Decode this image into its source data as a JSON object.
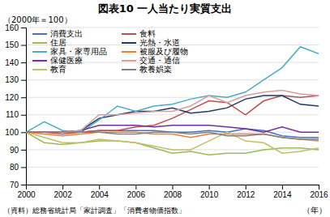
{
  "chart_data": {
    "type": "line",
    "title": "図表10  一人当たり実質支出",
    "ylabel": "（2000年＝100）",
    "xlabel": "（年）",
    "annotations": [
      "（資料）総務省統計局「家計調査」「消費者物価指数」"
    ],
    "x": [
      2000,
      2001,
      2002,
      2003,
      2004,
      2005,
      2006,
      2007,
      2008,
      2009,
      2010,
      2011,
      2012,
      2013,
      2014,
      2015,
      2016
    ],
    "xlim": [
      2000,
      2016
    ],
    "xticks": [
      2000,
      2002,
      2004,
      2006,
      2008,
      2010,
      2012,
      2014,
      2016
    ],
    "ylim": [
      70,
      160
    ],
    "yticks": [
      70,
      80,
      90,
      100,
      110,
      120,
      130,
      140,
      150,
      160
    ],
    "grid": "y",
    "legend": "upper left",
    "series": [
      {
        "name": "消費支出",
        "color": "#4472C4",
        "values": [
          100,
          100,
          100,
          100,
          101,
          101,
          101,
          101,
          100,
          100,
          101,
          100,
          102,
          101,
          98,
          97,
          97
        ]
      },
      {
        "name": "食料",
        "color": "#C0504D",
        "values": [
          100,
          100,
          99,
          100,
          101,
          101,
          103,
          104,
          108,
          113,
          118,
          117,
          110,
          118,
          121,
          120,
          121
        ]
      },
      {
        "name": "住居",
        "color": "#9BBB59",
        "values": [
          100,
          94,
          93,
          94,
          95,
          95,
          94,
          91,
          88,
          89,
          87,
          88,
          88,
          90,
          91,
          91,
          90
        ]
      },
      {
        "name": "光熱・水道",
        "color": "#1F3864",
        "values": [
          100,
          100,
          100,
          101,
          108,
          110,
          112,
          112,
          114,
          111,
          112,
          114,
          119,
          121,
          121,
          116,
          115
        ]
      },
      {
        "name": "家具・家専用品",
        "color": "#4BACC6",
        "values": [
          100,
          106,
          101,
          100,
          107,
          115,
          112,
          115,
          116,
          119,
          121,
          120,
          123,
          130,
          137,
          149,
          145
        ]
      },
      {
        "name": "被服及び履物",
        "color": "#ED7D31",
        "values": [
          100,
          99,
          98,
          99,
          100,
          100,
          100,
          99,
          99,
          97,
          99,
          99,
          99,
          99,
          97,
          96,
          95
        ]
      },
      {
        "name": "保健医療",
        "color": "#7030A0",
        "values": [
          100,
          100,
          100,
          101,
          104,
          104,
          104,
          103,
          104,
          104,
          104,
          103,
          102,
          100,
          103,
          100,
          100
        ]
      },
      {
        "name": "交通・通信",
        "color": "#D4A0A0",
        "values": [
          100,
          100,
          100,
          101,
          110,
          110,
          111,
          112,
          112,
          115,
          121,
          117,
          121,
          123,
          124,
          122,
          121
        ]
      },
      {
        "name": "教育",
        "color": "#C3BE6A",
        "values": [
          100,
          97,
          94,
          94,
          96,
          95,
          94,
          92,
          90,
          90,
          95,
          100,
          95,
          94,
          88,
          89,
          91
        ]
      },
      {
        "name": "教養娯楽",
        "color": "#808080",
        "values": [
          100,
          100,
          100,
          100,
          100,
          99,
          99,
          100,
          100,
          99,
          100,
          98,
          98,
          99,
          97,
          96,
          96
        ]
      }
    ]
  }
}
